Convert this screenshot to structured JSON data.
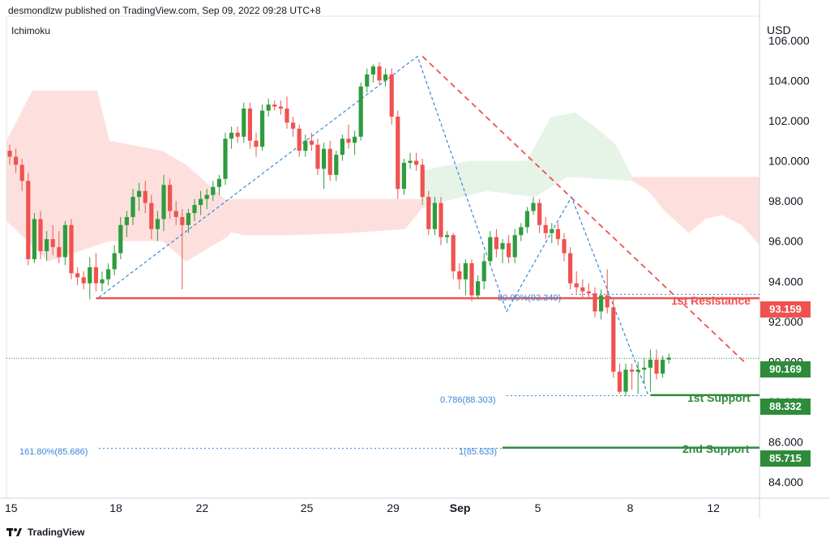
{
  "header": {
    "published": "desmondlzw published on TradingView.com, Sep 09, 2022 09:28 UTC+8",
    "indicator": "Ichimoku",
    "currency": "USD"
  },
  "footer": {
    "brand": "TradingView"
  },
  "colors": {
    "up": "#2e9c3d",
    "down": "#ef5350",
    "resistance": "#ef5350",
    "support": "#2e8b3a",
    "fib": "#3a86d8",
    "cloud_bear": "#fde0dd",
    "cloud_bull": "#e6f3e7",
    "last_price": "#2e8b3a"
  },
  "levels": {
    "resistance_label": "1st Resistance",
    "resistance_price": "93.159",
    "support1_label": "1st Support",
    "support1_price": "88.332",
    "support2_label": "2nd Support",
    "support2_price": "85.715",
    "last_price": "90.169"
  },
  "fib_labels": {
    "f50": "50.00%(93.349)",
    "f786": "0.786(88.303)",
    "f1": "1(85.633)",
    "f1618": "161.80%(85.686)"
  },
  "chart_data": {
    "type": "candlestick",
    "ylim": [
      83.2,
      107.2
    ],
    "x_ticks": [
      "15",
      "18",
      "22",
      "25",
      "29",
      "Sep",
      "5",
      "8",
      "12"
    ],
    "y_ticks": [
      "106.000",
      "104.000",
      "102.000",
      "100.000",
      "98.000",
      "96.000",
      "94.000",
      "92.000",
      "90.000",
      "88.000",
      "86.000",
      "84.000"
    ],
    "levels": {
      "resistance": 93.159,
      "support1": 88.332,
      "support2": 85.715,
      "last": 90.169
    },
    "candles": [
      [
        100.5,
        100.8,
        99.8,
        100.2
      ],
      [
        100.2,
        100.6,
        99.4,
        99.8
      ],
      [
        99.8,
        100.1,
        98.5,
        99.0
      ],
      [
        99.0,
        99.4,
        94.8,
        95.1
      ],
      [
        95.1,
        97.4,
        94.9,
        97.1
      ],
      [
        97.1,
        97.5,
        95.1,
        95.5
      ],
      [
        95.5,
        96.5,
        95.0,
        96.1
      ],
      [
        96.1,
        96.8,
        95.3,
        95.7
      ],
      [
        95.7,
        96.5,
        94.9,
        95.2
      ],
      [
        95.2,
        97.0,
        94.8,
        96.8
      ],
      [
        96.8,
        97.1,
        94.1,
        94.4
      ],
      [
        94.4,
        94.7,
        93.8,
        94.2
      ],
      [
        94.2,
        94.5,
        93.6,
        93.9
      ],
      [
        93.9,
        95.2,
        93.1,
        94.7
      ],
      [
        94.7,
        95.4,
        93.5,
        93.9
      ],
      [
        93.9,
        94.5,
        93.5,
        94.1
      ],
      [
        94.1,
        94.9,
        93.8,
        94.6
      ],
      [
        94.6,
        95.8,
        94.3,
        95.4
      ],
      [
        95.4,
        97.2,
        95.1,
        96.8
      ],
      [
        96.8,
        97.5,
        96.2,
        97.2
      ],
      [
        97.2,
        98.6,
        96.8,
        98.2
      ],
      [
        98.2,
        98.9,
        97.5,
        98.5
      ],
      [
        98.5,
        99.0,
        97.4,
        97.9
      ],
      [
        97.9,
        98.3,
        96.1,
        96.6
      ],
      [
        96.6,
        97.5,
        96.0,
        97.1
      ],
      [
        97.1,
        99.3,
        96.5,
        98.8
      ],
      [
        98.8,
        99.1,
        97.1,
        97.5
      ],
      [
        97.5,
        98.0,
        96.8,
        97.2
      ],
      [
        97.2,
        97.6,
        93.6,
        96.8
      ],
      [
        96.8,
        97.6,
        96.4,
        97.4
      ],
      [
        97.4,
        98.1,
        97.0,
        97.8
      ],
      [
        97.8,
        98.5,
        97.3,
        98.1
      ],
      [
        98.1,
        98.6,
        97.6,
        98.3
      ],
      [
        98.3,
        99.0,
        98.0,
        98.7
      ],
      [
        98.7,
        99.3,
        98.3,
        99.1
      ],
      [
        99.1,
        101.4,
        98.8,
        101.1
      ],
      [
        101.1,
        101.7,
        100.6,
        101.4
      ],
      [
        101.4,
        101.7,
        100.9,
        101.2
      ],
      [
        101.2,
        102.9,
        100.9,
        102.6
      ],
      [
        102.6,
        102.9,
        100.6,
        101.0
      ],
      [
        101.0,
        101.4,
        100.2,
        100.7
      ],
      [
        100.7,
        102.8,
        100.5,
        102.5
      ],
      [
        102.5,
        103.1,
        102.2,
        102.8
      ],
      [
        102.8,
        103.0,
        102.5,
        102.7
      ],
      [
        102.7,
        103.0,
        102.3,
        102.6
      ],
      [
        102.6,
        103.2,
        101.6,
        101.9
      ],
      [
        101.9,
        102.2,
        101.2,
        101.6
      ],
      [
        101.6,
        101.8,
        100.2,
        100.5
      ],
      [
        100.5,
        101.3,
        100.2,
        101.0
      ],
      [
        101.0,
        101.4,
        100.5,
        100.8
      ],
      [
        100.8,
        101.1,
        99.3,
        99.6
      ],
      [
        99.6,
        100.9,
        98.6,
        100.6
      ],
      [
        100.6,
        101.0,
        99.0,
        99.3
      ],
      [
        99.3,
        100.5,
        99.0,
        100.3
      ],
      [
        100.3,
        101.3,
        100.0,
        101.1
      ],
      [
        101.1,
        101.8,
        100.6,
        100.9
      ],
      [
        100.9,
        101.5,
        100.3,
        101.2
      ],
      [
        101.2,
        103.9,
        101.0,
        103.7
      ],
      [
        103.7,
        104.6,
        103.4,
        104.3
      ],
      [
        104.3,
        104.8,
        103.9,
        104.7
      ],
      [
        104.7,
        104.9,
        103.8,
        104.0
      ],
      [
        104.0,
        104.6,
        103.7,
        104.3
      ],
      [
        104.3,
        104.6,
        101.8,
        102.2
      ],
      [
        102.2,
        102.5,
        98.1,
        98.6
      ],
      [
        98.6,
        100.1,
        98.3,
        99.9
      ],
      [
        99.9,
        100.4,
        99.6,
        100.0
      ],
      [
        100.0,
        100.4,
        99.5,
        99.8
      ],
      [
        99.8,
        100.1,
        97.8,
        98.2
      ],
      [
        98.2,
        98.5,
        96.3,
        96.6
      ],
      [
        96.6,
        98.2,
        96.3,
        97.9
      ],
      [
        97.9,
        98.2,
        95.8,
        96.2
      ],
      [
        96.2,
        96.5,
        95.9,
        96.3
      ],
      [
        96.3,
        96.4,
        94.1,
        94.5
      ],
      [
        94.5,
        94.9,
        93.6,
        94.1
      ],
      [
        94.1,
        95.1,
        93.3,
        94.9
      ],
      [
        94.9,
        95.1,
        93.0,
        93.3
      ],
      [
        93.3,
        94.3,
        93.1,
        94.0
      ],
      [
        94.0,
        95.4,
        93.6,
        95.0
      ],
      [
        95.0,
        96.5,
        94.8,
        96.2
      ],
      [
        96.2,
        96.6,
        95.2,
        95.6
      ],
      [
        95.6,
        96.1,
        94.9,
        95.9
      ],
      [
        95.9,
        96.3,
        94.9,
        95.2
      ],
      [
        95.2,
        96.6,
        94.9,
        96.3
      ],
      [
        96.3,
        96.9,
        96.0,
        96.7
      ],
      [
        96.7,
        97.7,
        96.4,
        97.5
      ],
      [
        97.5,
        98.2,
        97.3,
        97.9
      ],
      [
        97.9,
        98.1,
        96.4,
        96.8
      ],
      [
        96.8,
        97.2,
        96.1,
        96.4
      ],
      [
        96.4,
        96.9,
        95.9,
        96.6
      ],
      [
        96.6,
        96.9,
        95.8,
        96.1
      ],
      [
        96.1,
        96.4,
        95.0,
        95.4
      ],
      [
        95.4,
        95.7,
        93.6,
        93.9
      ],
      [
        93.9,
        94.5,
        93.4,
        93.7
      ],
      [
        93.7,
        94.1,
        93.2,
        93.5
      ],
      [
        93.5,
        93.9,
        93.1,
        93.4
      ],
      [
        93.4,
        93.7,
        92.2,
        92.5
      ],
      [
        92.5,
        93.6,
        92.1,
        93.3
      ],
      [
        93.3,
        94.6,
        92.4,
        92.7
      ],
      [
        92.7,
        93.2,
        89.2,
        89.5
      ],
      [
        89.5,
        89.9,
        88.4,
        88.5
      ],
      [
        88.5,
        89.9,
        88.3,
        89.6
      ],
      [
        89.6,
        89.9,
        88.6,
        89.5
      ],
      [
        89.5,
        90.0,
        88.4,
        89.6
      ],
      [
        89.6,
        90.2,
        88.9,
        89.7
      ],
      [
        89.7,
        90.6,
        88.5,
        90.1
      ],
      [
        90.1,
        90.6,
        89.1,
        89.4
      ],
      [
        89.4,
        90.3,
        89.2,
        90.1
      ],
      [
        90.1,
        90.4,
        89.9,
        90.2
      ]
    ]
  }
}
